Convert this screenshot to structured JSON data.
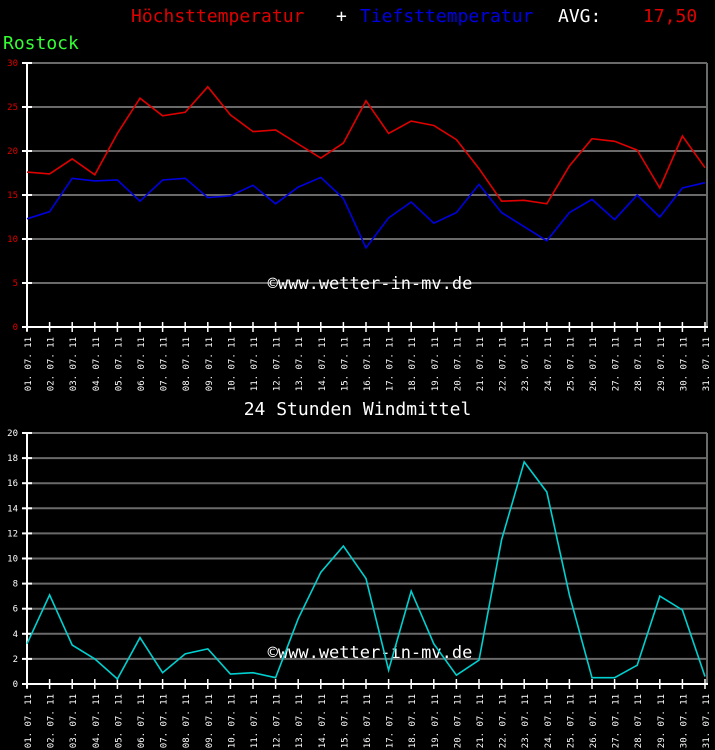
{
  "header": {
    "max_label": "Höchsttemperatur",
    "plus": "+",
    "min_label": "Tiefsttemperatur",
    "avg_label": "AVG:",
    "avg_value": "17,50",
    "city": "Rostock"
  },
  "colors": {
    "max": "#e00000",
    "min": "#0000e0",
    "wind": "#00d0d0",
    "grid": "#6a6a6a",
    "axis": "#ffffff",
    "city": "#33ff33"
  },
  "watermark": "©www.wetter-in-mv.de",
  "wind_title": "24 Stunden Windmittel",
  "chart_data": [
    {
      "type": "line",
      "title": "Höchsttemperatur + Tiefsttemperatur AVG: 17,50",
      "subtitle": "Rostock",
      "xlabel": "",
      "ylabel": "",
      "ylim": [
        0,
        30
      ],
      "yticks": [
        0,
        5,
        10,
        15,
        20,
        25,
        30
      ],
      "grid": true,
      "categories": [
        "01.07.11",
        "02.07.11",
        "03.07.11",
        "04.07.11",
        "05.07.11",
        "06.07.11",
        "07.07.11",
        "08.07.11",
        "09.07.11",
        "10.07.11",
        "11.07.11",
        "12.07.11",
        "13.07.11",
        "14.07.11",
        "15.07.11",
        "16.07.11",
        "17.07.11",
        "18.07.11",
        "19.07.11",
        "20.07.11",
        "21.07.11",
        "22.07.11",
        "23.07.11",
        "24.07.11",
        "25.07.11",
        "26.07.11",
        "27.07.11",
        "28.07.11",
        "29.07.11",
        "30.07.11",
        "31.07.11"
      ],
      "series": [
        {
          "name": "Höchsttemperatur",
          "color": "#e00000",
          "values": [
            17.6,
            17.4,
            19.1,
            17.3,
            22.0,
            26.0,
            24.0,
            24.4,
            27.3,
            24.1,
            22.2,
            22.4,
            20.8,
            19.2,
            20.9,
            25.7,
            22.0,
            23.4,
            22.9,
            21.3,
            18.0,
            14.3,
            14.4,
            14.0,
            18.3,
            21.4,
            21.1,
            20.1,
            15.8,
            21.7,
            18.1
          ]
        },
        {
          "name": "Tiefsttemperatur",
          "color": "#0000e0",
          "values": [
            12.3,
            13.1,
            16.9,
            16.6,
            16.7,
            14.3,
            16.7,
            16.9,
            14.7,
            14.9,
            16.1,
            14.0,
            15.9,
            17.0,
            14.6,
            9.0,
            12.4,
            14.2,
            11.8,
            13.0,
            16.2,
            13.0,
            11.4,
            9.8,
            13.0,
            14.5,
            12.2,
            15.0,
            12.5,
            15.8,
            16.4
          ]
        }
      ]
    },
    {
      "type": "line",
      "title": "24 Stunden Windmittel",
      "xlabel": "",
      "ylabel": "",
      "ylim": [
        0,
        20
      ],
      "yticks": [
        0,
        2,
        4,
        6,
        8,
        10,
        12,
        14,
        16,
        18,
        20
      ],
      "grid": true,
      "categories": [
        "01.07.11",
        "02.07.11",
        "03.07.11",
        "04.07.11",
        "05.07.11",
        "06.07.11",
        "07.07.11",
        "08.07.11",
        "09.07.11",
        "10.07.11",
        "11.07.11",
        "12.07.11",
        "13.07.11",
        "14.07.11",
        "15.07.11",
        "16.07.11",
        "17.07.11",
        "18.07.11",
        "19.07.11",
        "20.07.11",
        "21.07.11",
        "22.07.11",
        "23.07.11",
        "24.07.11",
        "25.07.11",
        "26.07.11",
        "27.07.11",
        "28.07.11",
        "29.07.11",
        "30.07.11",
        "31.07.11"
      ],
      "series": [
        {
          "name": "Windmittel",
          "color": "#00d0d0",
          "values": [
            3.2,
            7.1,
            3.1,
            2.0,
            0.4,
            3.7,
            0.9,
            2.4,
            2.8,
            0.8,
            0.9,
            0.5,
            5.2,
            8.9,
            11.0,
            8.4,
            1.1,
            7.4,
            3.2,
            0.7,
            1.9,
            11.5,
            17.7,
            15.3,
            7.1,
            0.5,
            0.5,
            1.5,
            7.0,
            5.9,
            0.6
          ]
        }
      ]
    }
  ]
}
